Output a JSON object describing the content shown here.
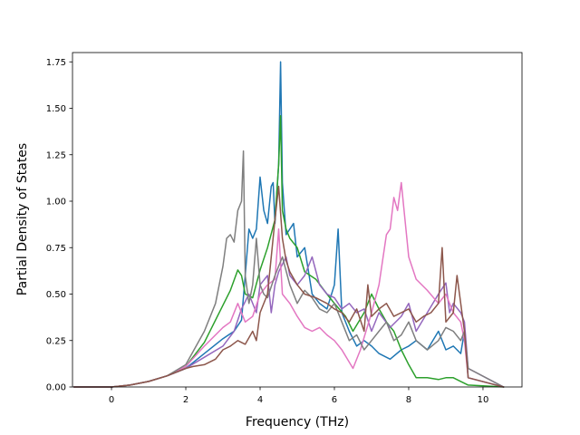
{
  "chart_data": {
    "type": "line",
    "title": "",
    "xlabel": "Frequency (THz)",
    "ylabel": "Partial Density of States",
    "xlim": [
      -1.05,
      11.05
    ],
    "ylim": [
      0,
      1.8
    ],
    "xticks": [
      0,
      2,
      4,
      6,
      8,
      10
    ],
    "yticks": [
      0.0,
      0.25,
      0.5,
      0.75,
      1.0,
      1.25,
      1.5,
      1.75
    ],
    "xtick_labels": [
      "0",
      "2",
      "4",
      "6",
      "8",
      "10"
    ],
    "ytick_labels": [
      "0.00",
      "0.25",
      "0.50",
      "0.75",
      "1.00",
      "1.25",
      "1.50",
      "1.75"
    ],
    "grid": false,
    "legend": "none",
    "series": [
      {
        "color": "#1f77b4",
        "x": [
          -1.0,
          0.0,
          0.5,
          1.0,
          1.5,
          2.0,
          2.5,
          3.0,
          3.3,
          3.5,
          3.6,
          3.7,
          3.8,
          3.9,
          4.0,
          4.1,
          4.2,
          4.3,
          4.35,
          4.4,
          4.5,
          4.55,
          4.6,
          4.7,
          4.8,
          4.9,
          5.0,
          5.2,
          5.4,
          5.6,
          5.8,
          6.0,
          6.1,
          6.2,
          6.4,
          6.6,
          6.8,
          7.0,
          7.2,
          7.5,
          7.8,
          8.0,
          8.2,
          8.5,
          8.8,
          9.0,
          9.2,
          9.4,
          9.5,
          9.6,
          10.55
        ],
        "y": [
          0,
          0,
          0.01,
          0.03,
          0.06,
          0.1,
          0.18,
          0.26,
          0.3,
          0.36,
          0.6,
          0.85,
          0.8,
          0.85,
          1.13,
          0.95,
          0.88,
          1.08,
          1.1,
          0.88,
          1.2,
          1.75,
          1.1,
          0.82,
          0.85,
          0.88,
          0.7,
          0.75,
          0.5,
          0.45,
          0.42,
          0.55,
          0.85,
          0.4,
          0.3,
          0.22,
          0.25,
          0.22,
          0.18,
          0.15,
          0.2,
          0.22,
          0.25,
          0.2,
          0.3,
          0.2,
          0.22,
          0.18,
          0.3,
          0.05,
          0
        ]
      },
      {
        "color": "#2ca02c",
        "x": [
          -1.0,
          0.0,
          0.5,
          1.0,
          1.5,
          2.0,
          2.5,
          3.0,
          3.2,
          3.4,
          3.5,
          3.6,
          3.8,
          4.0,
          4.2,
          4.4,
          4.5,
          4.55,
          4.6,
          4.7,
          4.8,
          5.0,
          5.2,
          5.5,
          5.8,
          6.0,
          6.3,
          6.5,
          6.8,
          7.0,
          7.2,
          7.4,
          7.6,
          7.8,
          8.0,
          8.2,
          8.5,
          8.8,
          9.0,
          9.2,
          9.4,
          9.5,
          9.6,
          10.55
        ],
        "y": [
          0,
          0,
          0.01,
          0.03,
          0.06,
          0.11,
          0.24,
          0.44,
          0.52,
          0.63,
          0.6,
          0.5,
          0.48,
          0.63,
          0.75,
          0.9,
          1.2,
          1.46,
          0.95,
          0.85,
          0.8,
          0.75,
          0.62,
          0.58,
          0.5,
          0.45,
          0.38,
          0.3,
          0.4,
          0.5,
          0.42,
          0.35,
          0.3,
          0.2,
          0.12,
          0.05,
          0.05,
          0.04,
          0.05,
          0.05,
          0.03,
          0.02,
          0.01,
          0
        ]
      },
      {
        "color": "#9467bd",
        "x": [
          -1.0,
          0.0,
          0.5,
          1.0,
          1.5,
          2.0,
          2.5,
          3.0,
          3.3,
          3.5,
          3.7,
          3.9,
          4.0,
          4.2,
          4.3,
          4.4,
          4.5,
          4.6,
          4.7,
          4.8,
          5.0,
          5.2,
          5.4,
          5.6,
          5.8,
          6.0,
          6.2,
          6.4,
          6.6,
          6.8,
          7.0,
          7.2,
          7.5,
          7.8,
          8.0,
          8.2,
          8.5,
          8.8,
          9.0,
          9.1,
          9.2,
          9.4,
          9.5,
          9.6,
          10.55
        ],
        "y": [
          0,
          0,
          0.01,
          0.03,
          0.06,
          0.1,
          0.16,
          0.22,
          0.3,
          0.42,
          0.5,
          0.4,
          0.55,
          0.6,
          0.4,
          0.55,
          0.62,
          0.66,
          0.7,
          0.6,
          0.55,
          0.6,
          0.7,
          0.55,
          0.5,
          0.48,
          0.42,
          0.45,
          0.4,
          0.42,
          0.3,
          0.4,
          0.32,
          0.38,
          0.45,
          0.3,
          0.4,
          0.5,
          0.56,
          0.4,
          0.45,
          0.4,
          0.35,
          0.1,
          0
        ]
      },
      {
        "color": "#e377c2",
        "x": [
          -1.0,
          0.0,
          0.5,
          1.0,
          1.5,
          2.0,
          2.5,
          3.0,
          3.2,
          3.4,
          3.6,
          3.8,
          4.0,
          4.2,
          4.4,
          4.5,
          4.6,
          4.8,
          5.0,
          5.2,
          5.4,
          5.6,
          5.8,
          6.0,
          6.2,
          6.5,
          6.7,
          7.0,
          7.2,
          7.4,
          7.5,
          7.6,
          7.7,
          7.8,
          8.0,
          8.2,
          8.5,
          8.8,
          9.0,
          9.2,
          9.4,
          9.5,
          9.6,
          10.55
        ],
        "y": [
          0,
          0,
          0.01,
          0.03,
          0.06,
          0.11,
          0.22,
          0.32,
          0.35,
          0.45,
          0.35,
          0.38,
          0.5,
          0.55,
          0.58,
          0.85,
          0.5,
          0.45,
          0.38,
          0.32,
          0.3,
          0.32,
          0.28,
          0.25,
          0.2,
          0.1,
          0.2,
          0.4,
          0.55,
          0.82,
          0.85,
          1.02,
          0.95,
          1.1,
          0.7,
          0.58,
          0.52,
          0.45,
          0.5,
          0.4,
          0.35,
          0.25,
          0.05,
          0
        ]
      },
      {
        "color": "#7f7f7f",
        "x": [
          -1.0,
          0.0,
          0.5,
          1.0,
          1.5,
          2.0,
          2.5,
          2.8,
          3.0,
          3.1,
          3.2,
          3.3,
          3.4,
          3.5,
          3.55,
          3.6,
          3.7,
          3.8,
          3.9,
          4.0,
          4.1,
          4.2,
          4.4,
          4.6,
          4.8,
          5.0,
          5.2,
          5.4,
          5.6,
          5.8,
          6.0,
          6.2,
          6.4,
          6.6,
          6.8,
          7.0,
          7.2,
          7.4,
          7.6,
          7.8,
          8.0,
          8.2,
          8.5,
          8.8,
          9.0,
          9.2,
          9.4,
          9.5,
          9.6,
          10.55
        ],
        "y": [
          0,
          0,
          0.01,
          0.03,
          0.06,
          0.12,
          0.3,
          0.45,
          0.65,
          0.8,
          0.82,
          0.78,
          0.95,
          1.0,
          1.27,
          0.6,
          0.45,
          0.55,
          0.8,
          0.55,
          0.5,
          0.48,
          0.6,
          0.7,
          0.55,
          0.45,
          0.52,
          0.48,
          0.42,
          0.4,
          0.45,
          0.35,
          0.25,
          0.28,
          0.2,
          0.25,
          0.3,
          0.35,
          0.25,
          0.28,
          0.35,
          0.25,
          0.2,
          0.25,
          0.32,
          0.3,
          0.25,
          0.3,
          0.1,
          0
        ]
      },
      {
        "color": "#8c564b",
        "x": [
          -1.0,
          0.0,
          0.5,
          1.0,
          1.5,
          2.0,
          2.2,
          2.5,
          2.8,
          3.0,
          3.2,
          3.4,
          3.6,
          3.8,
          3.9,
          4.0,
          4.2,
          4.3,
          4.4,
          4.5,
          4.6,
          4.7,
          4.8,
          5.0,
          5.2,
          5.5,
          5.8,
          6.0,
          6.2,
          6.4,
          6.6,
          6.8,
          6.9,
          7.0,
          7.2,
          7.4,
          7.6,
          7.8,
          8.0,
          8.2,
          8.4,
          8.6,
          8.8,
          8.9,
          9.0,
          9.2,
          9.3,
          9.4,
          9.5,
          9.6,
          10.55
        ],
        "y": [
          0,
          0,
          0.01,
          0.03,
          0.06,
          0.1,
          0.11,
          0.12,
          0.15,
          0.2,
          0.22,
          0.25,
          0.23,
          0.3,
          0.25,
          0.4,
          0.5,
          0.7,
          0.9,
          1.08,
          0.8,
          0.68,
          0.62,
          0.55,
          0.5,
          0.48,
          0.45,
          0.42,
          0.4,
          0.35,
          0.42,
          0.3,
          0.55,
          0.38,
          0.42,
          0.45,
          0.38,
          0.4,
          0.42,
          0.35,
          0.38,
          0.4,
          0.45,
          0.75,
          0.35,
          0.4,
          0.6,
          0.45,
          0.3,
          0.05,
          0
        ]
      }
    ]
  }
}
